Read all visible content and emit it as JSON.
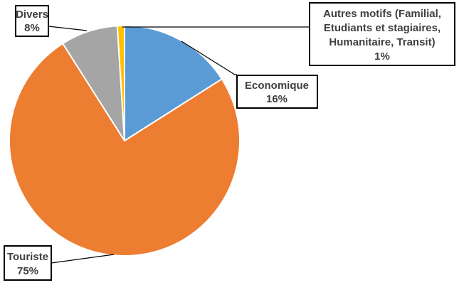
{
  "chart_data": {
    "type": "pie",
    "title": "",
    "slices": [
      {
        "label": "Economique",
        "value": 16,
        "value_label": "16%",
        "color": "#5B9BD5"
      },
      {
        "label": "Touriste",
        "value": 75,
        "value_label": "75%",
        "color": "#ED7D31"
      },
      {
        "label": "Divers",
        "value": 8,
        "value_label": "8%",
        "color": "#A5A5A5"
      },
      {
        "label": "Autres motifs (Familial, Etudiants et stagiaires, Humanitaire, Transit)",
        "value": 1,
        "value_label": "1%",
        "color": "#FFC000"
      }
    ],
    "legend": "none",
    "data_labels": "callouts"
  },
  "callout_lines": {
    "autres": [
      "Autres motifs (Familial,",
      "Etudiants et stagiaires,",
      "Humanitaire, Transit)",
      "1%"
    ],
    "economique": [
      "Economique",
      "16%"
    ],
    "divers": [
      "Divers",
      "8%"
    ],
    "touriste": [
      "Touriste",
      "75%"
    ]
  }
}
